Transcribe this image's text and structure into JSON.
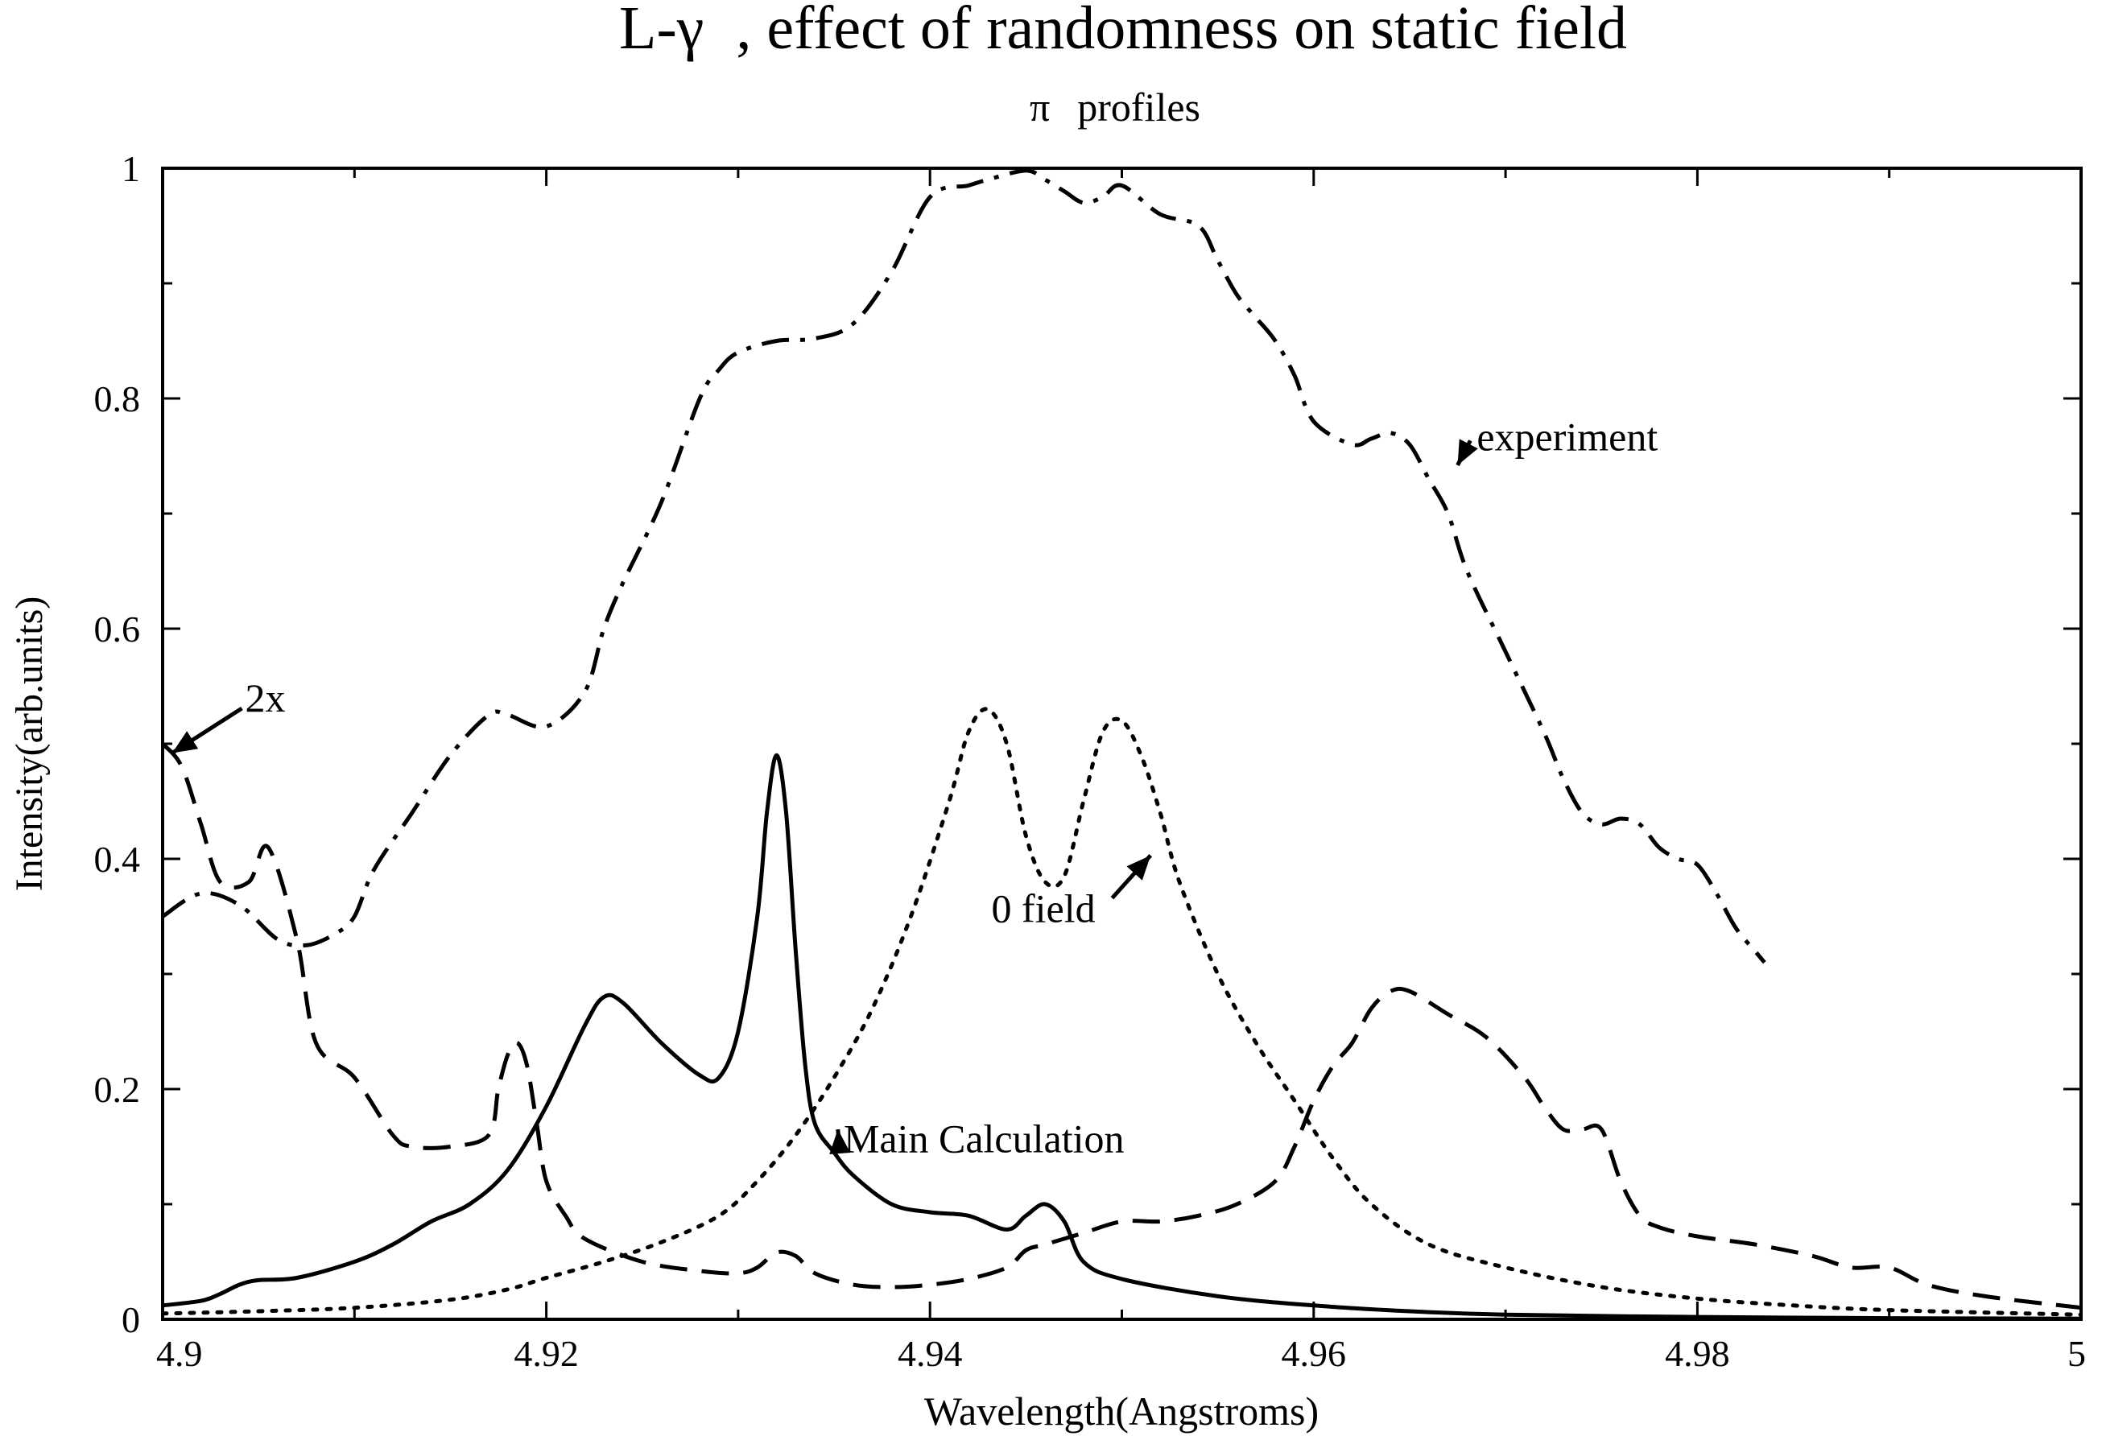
{
  "chart_data": {
    "type": "line",
    "title_prefix": "L-",
    "title_symbol": "γ",
    "title_suffix": ", effect of randomness on static field",
    "subtitle_symbol": "π",
    "subtitle_text": "profiles",
    "xlabel": "Wavelength(Angstroms)",
    "ylabel": "Intensity(arb.units)",
    "xlim": [
      4.9,
      5.0
    ],
    "ylim": [
      0,
      1
    ],
    "x_ticks": [
      4.9,
      4.92,
      4.94,
      4.96,
      4.98,
      5.0
    ],
    "x_tick_labels": [
      "4.9",
      "4.92",
      "4.94",
      "4.96",
      "4.98",
      "5"
    ],
    "y_ticks": [
      0,
      0.2,
      0.4,
      0.6,
      0.8,
      1.0
    ],
    "y_tick_labels": [
      "0",
      "0.2",
      "0.4",
      "0.6",
      "0.8",
      "1"
    ],
    "grid": false,
    "series": [
      {
        "name": "experiment",
        "style": "dash-dot",
        "color": "#000000",
        "x": [
          4.9,
          4.902,
          4.904,
          4.906,
          4.9075,
          4.909,
          4.91,
          4.911,
          4.913,
          4.915,
          4.917,
          4.918,
          4.92,
          4.922,
          4.923,
          4.924,
          4.926,
          4.928,
          4.929,
          4.93,
          4.932,
          4.934,
          4.936,
          4.938,
          4.94,
          4.942,
          4.943,
          4.945,
          4.946,
          4.947,
          4.948,
          4.949,
          4.95,
          4.952,
          4.954,
          4.955,
          4.956,
          4.957,
          4.958,
          4.959,
          4.96,
          4.962,
          4.963,
          4.964,
          4.965,
          4.966,
          4.967,
          4.968,
          4.97,
          4.972,
          4.973,
          4.974,
          4.975,
          4.976,
          4.977,
          4.978,
          4.979,
          4.98,
          4.981,
          4.982,
          4.983,
          4.9835
        ],
        "y": [
          0.35,
          0.37,
          0.36,
          0.33,
          0.325,
          0.335,
          0.35,
          0.39,
          0.44,
          0.49,
          0.525,
          0.525,
          0.515,
          0.545,
          0.6,
          0.64,
          0.71,
          0.8,
          0.825,
          0.84,
          0.85,
          0.852,
          0.865,
          0.91,
          0.975,
          0.985,
          0.99,
          0.998,
          0.99,
          0.98,
          0.97,
          0.975,
          0.985,
          0.96,
          0.95,
          0.92,
          0.89,
          0.87,
          0.85,
          0.82,
          0.78,
          0.76,
          0.765,
          0.77,
          0.76,
          0.73,
          0.7,
          0.65,
          0.58,
          0.51,
          0.47,
          0.44,
          0.43,
          0.435,
          0.43,
          0.41,
          0.4,
          0.395,
          0.37,
          0.34,
          0.32,
          0.31
        ]
      },
      {
        "name": "2x",
        "style": "dash",
        "color": "#000000",
        "x": [
          4.9,
          4.901,
          4.902,
          4.903,
          4.9045,
          4.9055,
          4.907,
          4.908,
          4.91,
          4.912,
          4.913,
          4.915,
          4.917,
          4.9175,
          4.918,
          4.9185,
          4.919,
          4.9195,
          4.92,
          4.921,
          4.922,
          4.925,
          4.928,
          4.93,
          4.931,
          4.932,
          4.933,
          4.934,
          4.936,
          4.938,
          4.94,
          4.942,
          4.944,
          4.945,
          4.946,
          4.948,
          4.95,
          4.952,
          4.954,
          4.956,
          4.958,
          4.959,
          4.96,
          4.961,
          4.962,
          4.963,
          4.964,
          4.965,
          4.967,
          4.969,
          4.971,
          4.972,
          4.973,
          4.974,
          4.975,
          4.976,
          4.977,
          4.978,
          4.98,
          4.983,
          4.986,
          4.988,
          4.99,
          4.992,
          4.995,
          5.0
        ],
        "y": [
          0.5,
          0.48,
          0.43,
          0.38,
          0.38,
          0.41,
          0.33,
          0.24,
          0.21,
          0.16,
          0.15,
          0.15,
          0.16,
          0.2,
          0.23,
          0.24,
          0.22,
          0.17,
          0.12,
          0.09,
          0.07,
          0.05,
          0.042,
          0.04,
          0.045,
          0.058,
          0.055,
          0.04,
          0.03,
          0.028,
          0.03,
          0.035,
          0.045,
          0.06,
          0.065,
          0.075,
          0.085,
          0.085,
          0.09,
          0.1,
          0.12,
          0.15,
          0.19,
          0.22,
          0.24,
          0.27,
          0.285,
          0.285,
          0.265,
          0.245,
          0.21,
          0.185,
          0.165,
          0.165,
          0.165,
          0.12,
          0.09,
          0.08,
          0.072,
          0.065,
          0.055,
          0.045,
          0.045,
          0.03,
          0.02,
          0.01
        ]
      },
      {
        "name": "Main Calculation",
        "style": "solid",
        "color": "#000000",
        "x": [
          4.9,
          4.902,
          4.903,
          4.904,
          4.905,
          4.907,
          4.91,
          4.912,
          4.914,
          4.916,
          4.918,
          4.92,
          4.922,
          4.923,
          4.924,
          4.926,
          4.928,
          4.929,
          4.93,
          4.931,
          4.9315,
          4.932,
          4.9325,
          4.933,
          4.9335,
          4.934,
          4.935,
          4.936,
          4.938,
          4.94,
          4.942,
          4.944,
          4.945,
          4.946,
          4.947,
          4.948,
          4.95,
          4.955,
          4.96,
          4.965,
          4.97,
          4.98,
          4.99,
          5.0
        ],
        "y": [
          0.012,
          0.016,
          0.022,
          0.03,
          0.034,
          0.036,
          0.05,
          0.065,
          0.085,
          0.1,
          0.13,
          0.185,
          0.255,
          0.28,
          0.275,
          0.24,
          0.212,
          0.21,
          0.25,
          0.35,
          0.44,
          0.49,
          0.44,
          0.32,
          0.22,
          0.17,
          0.145,
          0.125,
          0.1,
          0.093,
          0.09,
          0.078,
          0.09,
          0.1,
          0.085,
          0.05,
          0.035,
          0.02,
          0.012,
          0.007,
          0.004,
          0.002,
          0.001,
          0.0005
        ]
      },
      {
        "name": "0 field",
        "style": "dot",
        "color": "#000000",
        "x": [
          4.9,
          4.905,
          4.91,
          4.915,
          4.918,
          4.92,
          4.923,
          4.926,
          4.929,
          4.931,
          4.933,
          4.935,
          4.937,
          4.939,
          4.941,
          4.942,
          4.943,
          4.944,
          4.945,
          4.946,
          4.947,
          4.948,
          4.949,
          4.95,
          4.951,
          4.952,
          4.953,
          4.955,
          4.957,
          4.959,
          4.961,
          4.963,
          4.966,
          4.97,
          4.975,
          4.98,
          4.985,
          4.99,
          5.0
        ],
        "y": [
          0.005,
          0.007,
          0.01,
          0.017,
          0.026,
          0.036,
          0.05,
          0.067,
          0.09,
          0.12,
          0.16,
          0.21,
          0.27,
          0.35,
          0.45,
          0.51,
          0.53,
          0.5,
          0.42,
          0.38,
          0.385,
          0.45,
          0.51,
          0.52,
          0.49,
          0.44,
          0.38,
          0.3,
          0.24,
          0.19,
          0.14,
          0.1,
          0.065,
          0.045,
          0.028,
          0.018,
          0.012,
          0.008,
          0.004
        ]
      }
    ],
    "annotations": [
      {
        "name": "annotation-experiment",
        "text": "experiment",
        "text_x": 4.9685,
        "text_y": 0.755,
        "arrow_to_x": 4.9675,
        "arrow_to_y": 0.742
      },
      {
        "name": "annotation-2x",
        "text": "2x",
        "text_x": 4.9043,
        "text_y": 0.528,
        "arrow_to_x": 4.9005,
        "arrow_to_y": 0.492
      },
      {
        "name": "annotation-0-field",
        "text": "0 field",
        "text_x": 4.9432,
        "text_y": 0.345,
        "arrow_to_x": 4.9515,
        "arrow_to_y": 0.403
      },
      {
        "name": "annotation-main-calculation",
        "text": "Main Calculation",
        "text_x": 4.9355,
        "text_y": 0.145,
        "arrow_to_x": 4.9352,
        "arrow_to_y": 0.165
      }
    ]
  }
}
